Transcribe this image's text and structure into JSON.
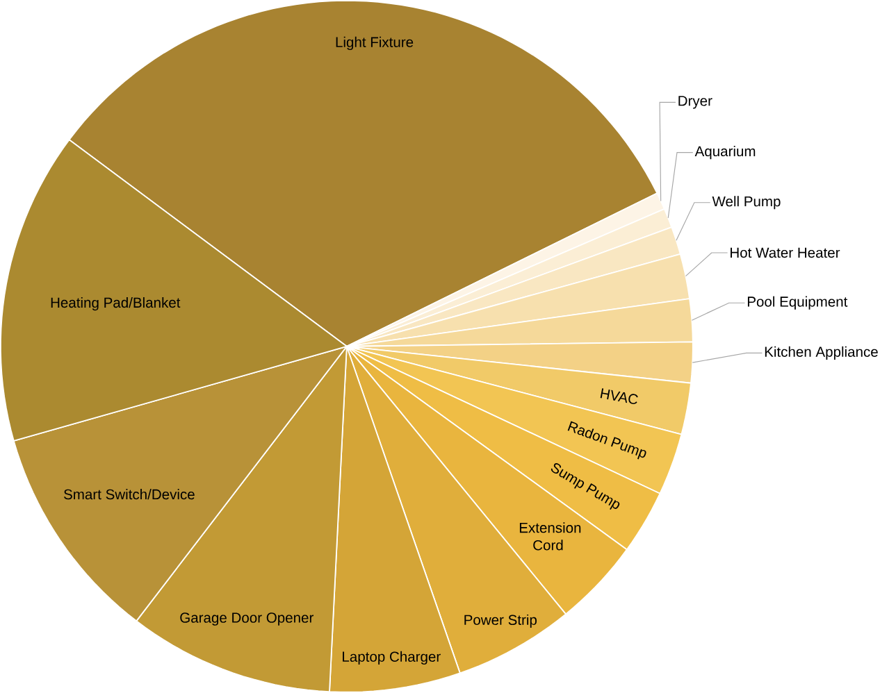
{
  "chart_data": {
    "type": "pie",
    "categories": [
      "Light Fixture",
      "Dryer",
      "Aquarium",
      "Well Pump",
      "Hot Water Heater",
      "Pool Equipment",
      "Kitchen Appliance",
      "HVAC",
      "Radon Pump",
      "Sump Pump",
      "Extension Cord",
      "Power Strip",
      "Laptop Charger",
      "Garage Door Opener",
      "Smart Switch/Device",
      "Heating Pad/Blanket"
    ],
    "values": [
      32.5,
      0.8,
      0.9,
      1.3,
      2.1,
      2.0,
      1.9,
      2.4,
      2.9,
      3.0,
      4.1,
      5.6,
      6.1,
      9.6,
      10.2,
      14.6
    ],
    "colors": [
      "#a88331",
      "#fdf4e6",
      "#fbeed5",
      "#f9e7c2",
      "#f7e0ae",
      "#f5d99a",
      "#f3d186",
      "#f1ca68",
      "#f2c553",
      "#efbd45",
      "#e9b53e",
      "#e0ae3b",
      "#d4a537",
      "#c29a35",
      "#b89238",
      "#ab8a30"
    ]
  }
}
